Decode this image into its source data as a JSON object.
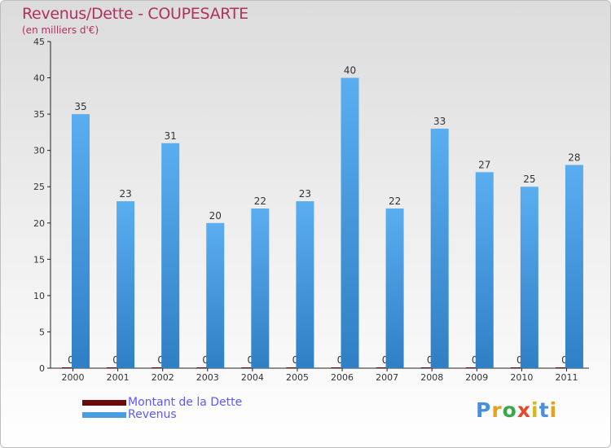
{
  "title": "Revenus/Dette - COUPESARTE",
  "subtitle": "(en milliers d'€)",
  "logo": {
    "text": "Proxiti"
  },
  "chart_data": {
    "type": "bar",
    "title": "Revenus/Dette - COUPESARTE",
    "ylabel": "(en milliers d'€)",
    "xlabel": "",
    "categories": [
      "2000",
      "2001",
      "2002",
      "2003",
      "2004",
      "2005",
      "2006",
      "2007",
      "2008",
      "2009",
      "2010",
      "2011"
    ],
    "series": [
      {
        "name": "Montant de la Dette",
        "color": "#6b0a0a",
        "values": [
          0,
          0,
          0,
          0,
          0,
          0,
          0,
          0,
          0,
          0,
          0,
          0
        ]
      },
      {
        "name": "Revenus",
        "color": "#4a9de0",
        "values": [
          35,
          23,
          31,
          20,
          22,
          23,
          40,
          22,
          33,
          27,
          25,
          28
        ]
      }
    ],
    "ylim": [
      0,
      45
    ],
    "yticks": [
      0,
      5,
      10,
      15,
      20,
      25,
      30,
      35,
      40,
      45
    ],
    "grid": false,
    "legend": "bottom-left"
  }
}
